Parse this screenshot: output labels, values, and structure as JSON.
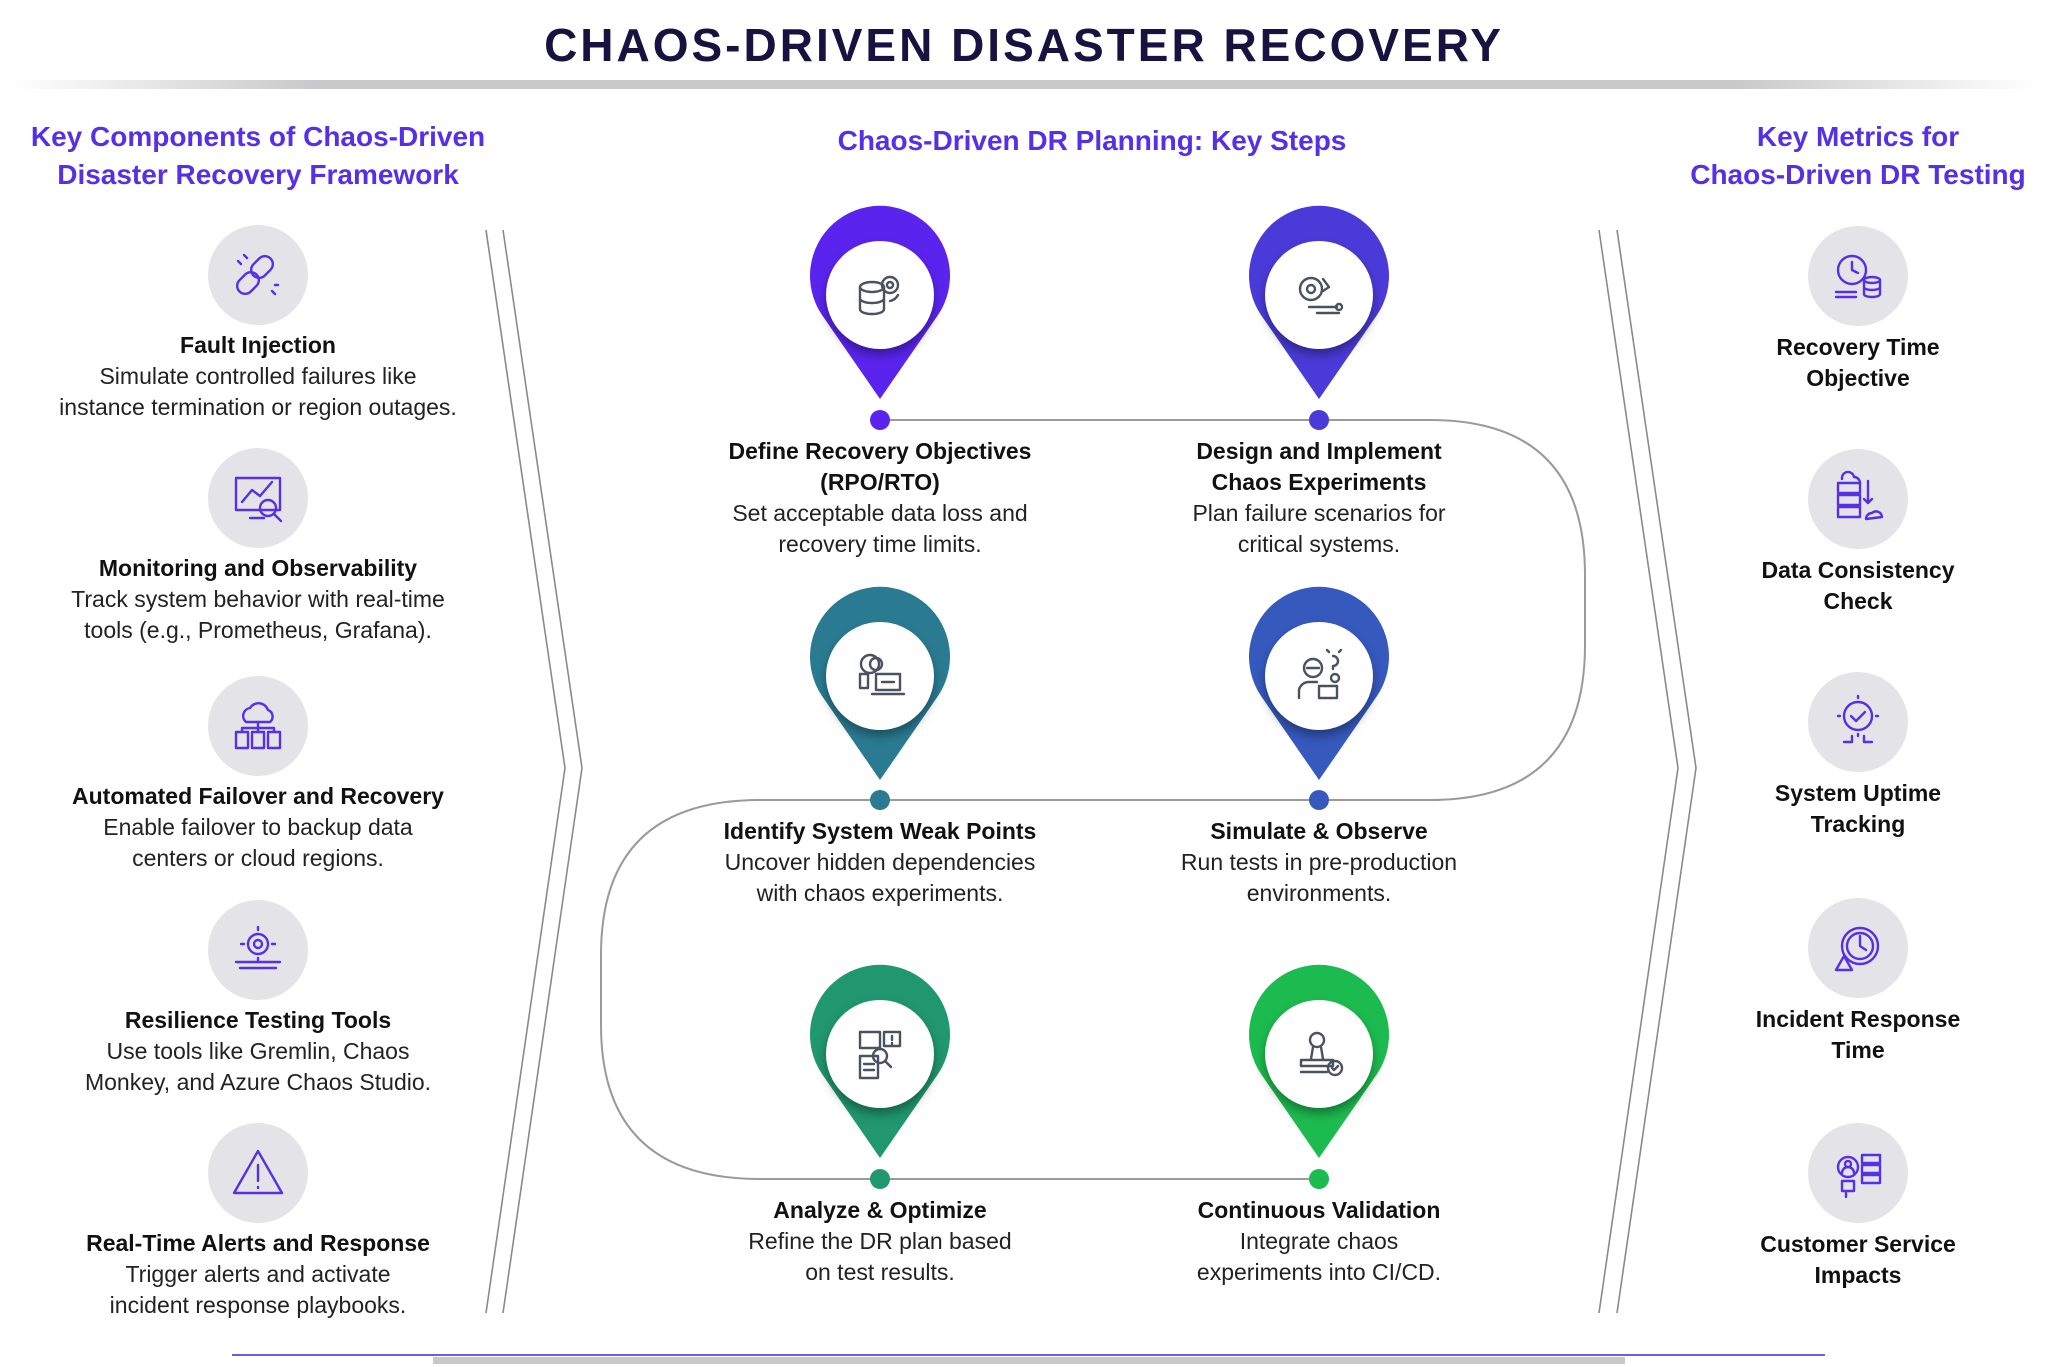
{
  "title": "CHAOS-DRIVEN DISASTER RECOVERY",
  "left": {
    "heading": [
      "Key Components of Chaos-Driven",
      "Disaster Recovery Framework"
    ],
    "items": [
      {
        "icon": "broken-link-icon",
        "title": "Fault Injection",
        "desc": [
          "Simulate controlled failures like",
          "instance termination or region outages."
        ]
      },
      {
        "icon": "monitor-analytics-icon",
        "title": "Monitoring and Observability",
        "desc": [
          "Track system behavior with real-time",
          "tools (e.g., Prometheus, Grafana)."
        ]
      },
      {
        "icon": "cloud-servers-icon",
        "title": "Automated Failover and Recovery",
        "desc": [
          "Enable failover to backup data",
          "centers or cloud regions."
        ]
      },
      {
        "icon": "gear-wrench-icon",
        "title": "Resilience Testing Tools",
        "desc": [
          "Use tools like Gremlin, Chaos",
          "Monkey, and Azure Chaos Studio."
        ]
      },
      {
        "icon": "warning-triangle-icon",
        "title": "Real-Time Alerts and Response",
        "desc": [
          "Trigger alerts and activate",
          "incident response playbooks."
        ]
      }
    ],
    "icon_color": "#5530e6"
  },
  "center": {
    "heading": "Chaos-Driven DR Planning: Key Steps",
    "steps": [
      {
        "icon": "database-gear-icon",
        "color": "#5a24ee",
        "title": [
          "Define Recovery Objectives",
          "(RPO/RTO)"
        ],
        "desc": [
          "Set acceptable data loss and",
          "recovery time limits."
        ]
      },
      {
        "icon": "gears-tools-icon",
        "color": "#4a3bd8",
        "title": [
          "Design and Implement",
          "Chaos Experiments"
        ],
        "desc": [
          "Plan failure scenarios for",
          "critical systems."
        ]
      },
      {
        "icon": "inspect-laptop-icon",
        "color": "#2a7b92",
        "title": [
          "Identify System Weak Points"
        ],
        "desc": [
          "Uncover hidden dependencies",
          "with chaos experiments."
        ]
      },
      {
        "icon": "engineer-idea-icon",
        "color": "#3659be",
        "title": [
          "Simulate & Observe"
        ],
        "desc": [
          "Run tests in pre-production",
          "environments."
        ]
      },
      {
        "icon": "document-search-icon",
        "color": "#20976f",
        "title": [
          "Analyze & Optimize"
        ],
        "desc": [
          "Refine the DR plan based",
          "on test results."
        ]
      },
      {
        "icon": "stamp-check-icon",
        "color": "#1cbb4f",
        "title": [
          "Continuous Validation"
        ],
        "desc": [
          "Integrate chaos",
          "experiments into CI/CD."
        ]
      }
    ]
  },
  "right": {
    "heading": [
      "Key Metrics for",
      "Chaos-Driven DR Testing"
    ],
    "items": [
      {
        "icon": "clock-database-icon",
        "title": [
          "Recovery Time",
          "Objective"
        ]
      },
      {
        "icon": "server-cloud-sync-icon",
        "title": [
          "Data Consistency",
          "Check"
        ]
      },
      {
        "icon": "gear-check-icon",
        "title": [
          "System Uptime",
          "Tracking"
        ]
      },
      {
        "icon": "clock-alert-icon",
        "title": [
          "Incident Response",
          "Time"
        ]
      },
      {
        "icon": "customer-server-icon",
        "title": [
          "Customer Service",
          "Impacts"
        ]
      }
    ]
  }
}
